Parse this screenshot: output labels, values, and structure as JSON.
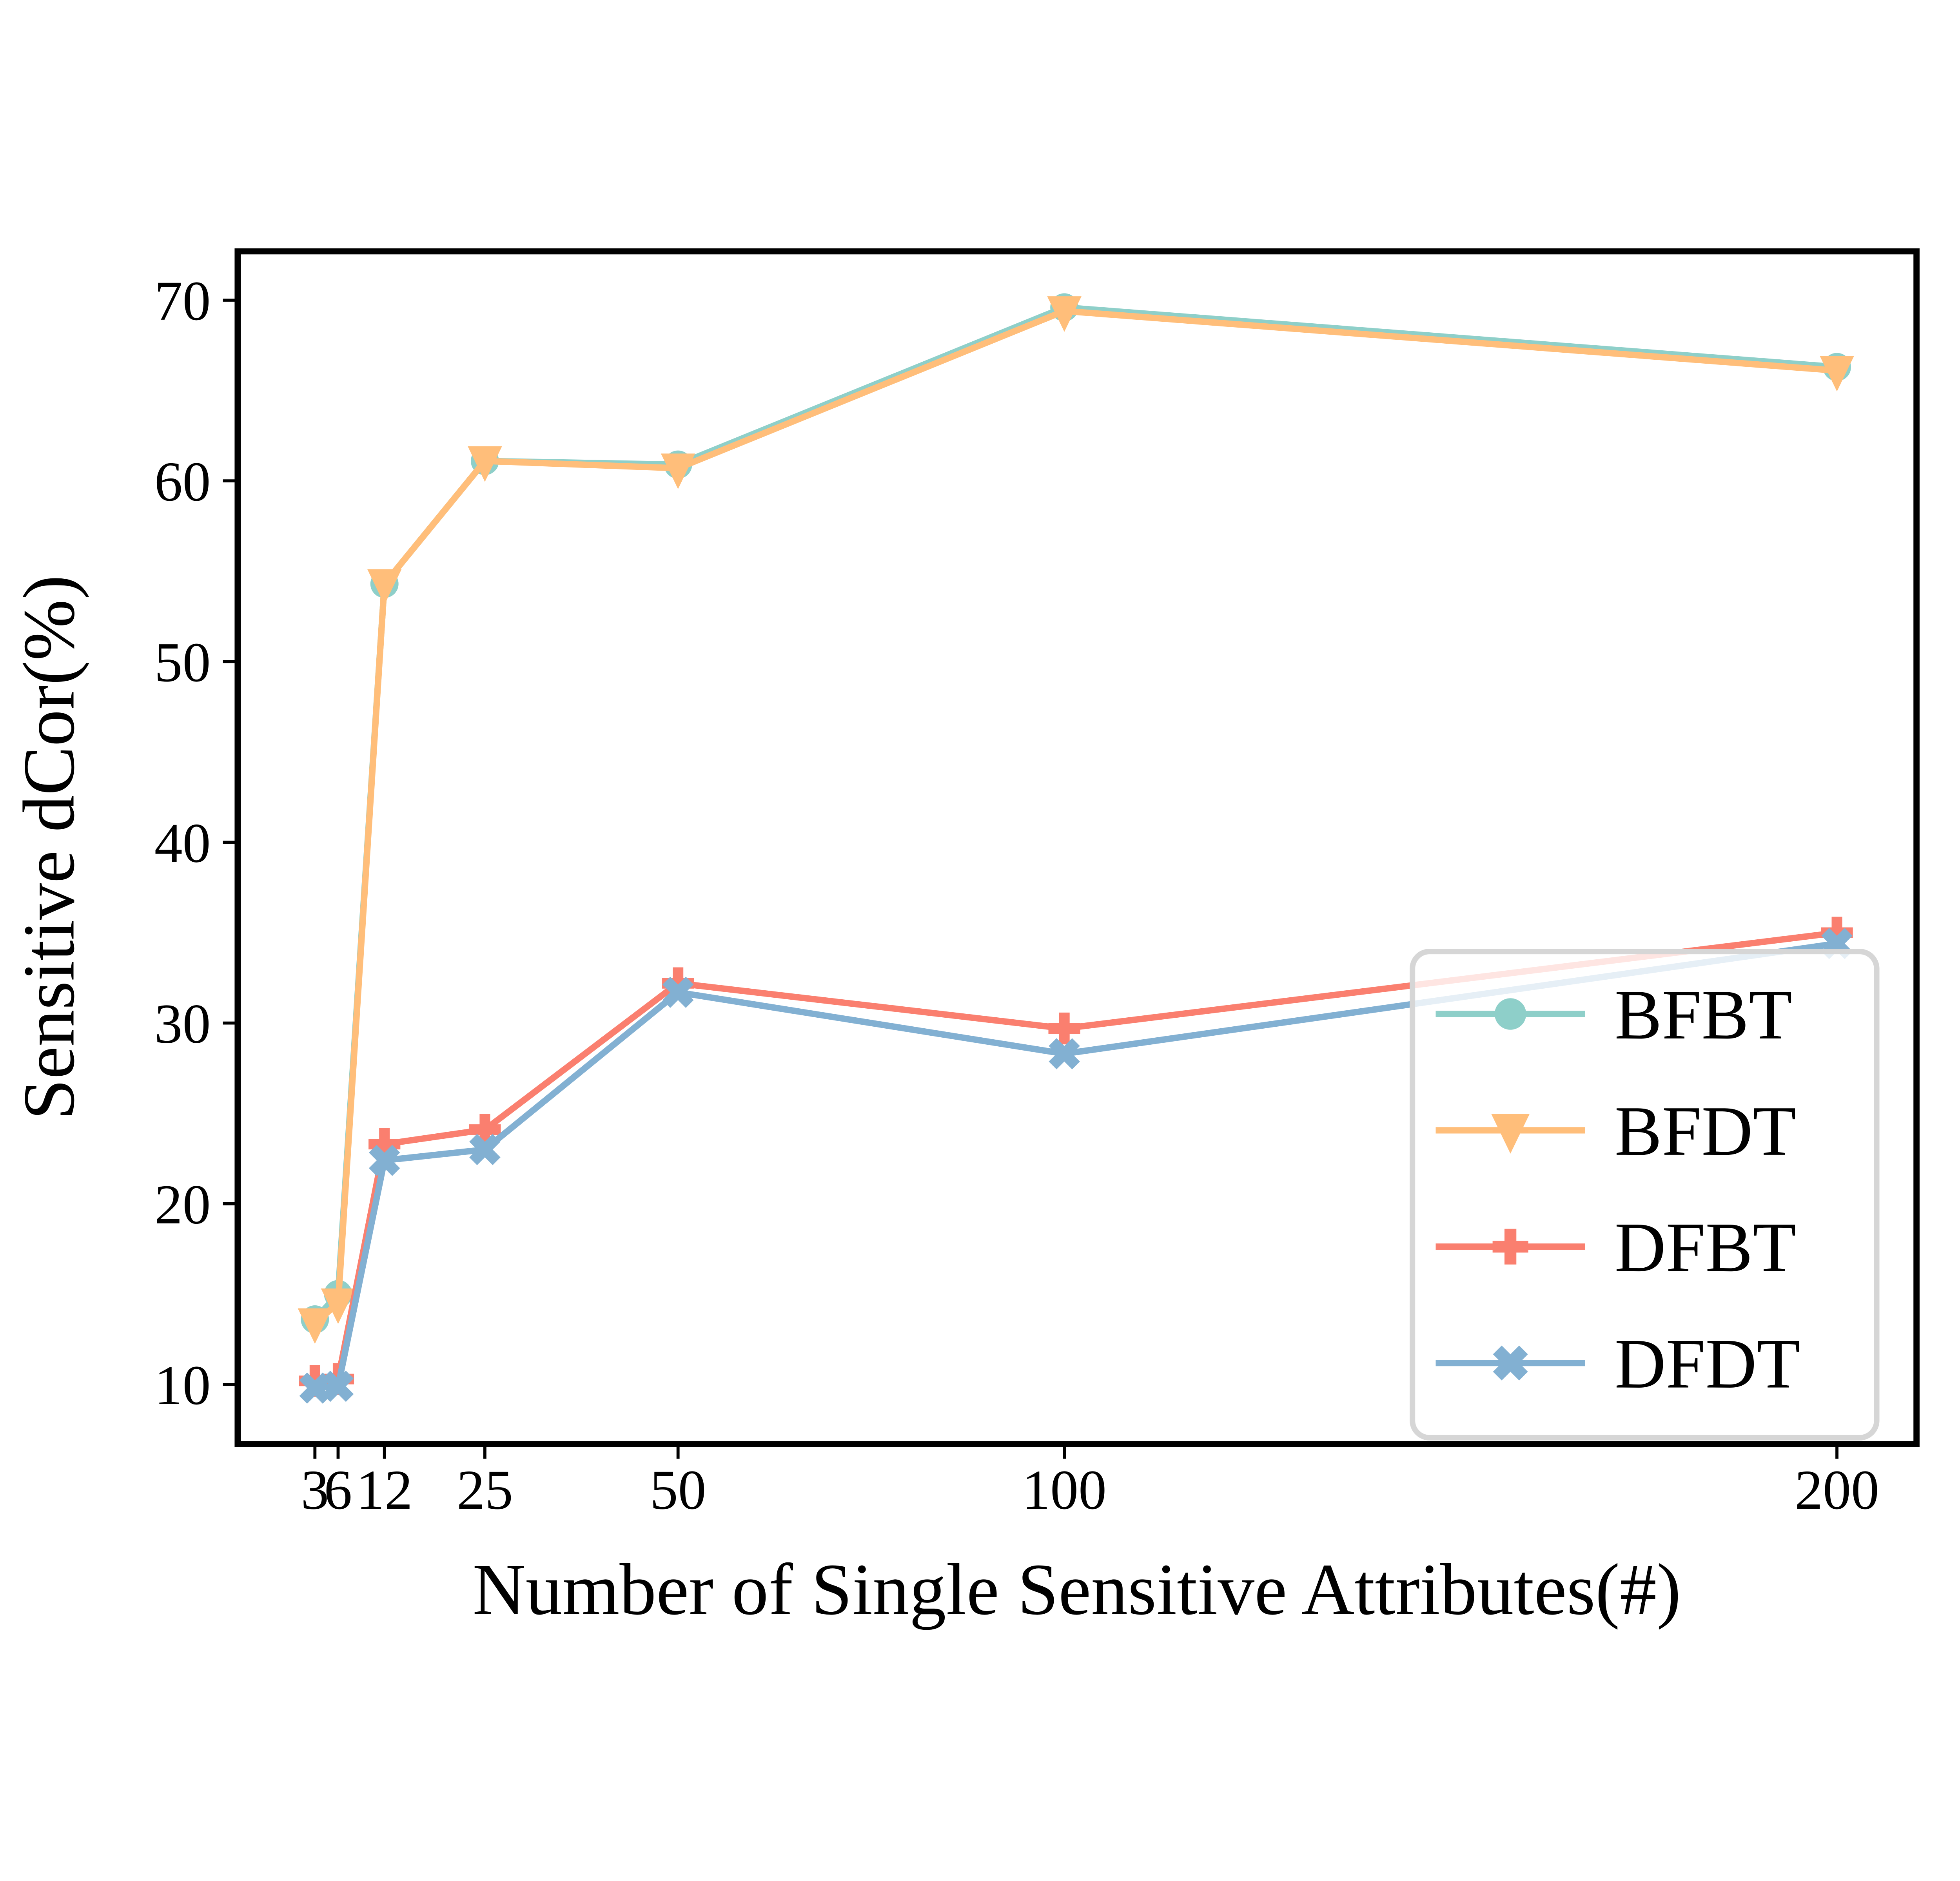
{
  "figure": {
    "background": "#ffffff",
    "spine_color": "#000000",
    "legend_border_color": "#d6d6d6"
  },
  "chart_data": {
    "type": "line",
    "title": "",
    "xlabel": "Number of Single Sensitive Attributes(#)",
    "ylabel": "Sensitive dCor(%)",
    "x": [
      3,
      6,
      12,
      25,
      50,
      100,
      200
    ],
    "x_tick_labels": [
      "3",
      "6",
      "12",
      "25",
      "50",
      "100",
      "200"
    ],
    "y_ticks": [
      10,
      20,
      30,
      40,
      50,
      60,
      70
    ],
    "y_tick_labels": [
      "10",
      "20",
      "30",
      "40",
      "50",
      "60",
      "70"
    ],
    "xlim": [
      -7,
      210.3
    ],
    "ylim": [
      6.7,
      72.7
    ],
    "grid": false,
    "legend_position": "lower-right-inside",
    "series": [
      {
        "name": "BFBT",
        "color": "#8ECFC9",
        "marker": "circle",
        "values": [
          13.6,
          15.0,
          54.3,
          61.1,
          60.9,
          69.6,
          66.3
        ]
      },
      {
        "name": "BFDT",
        "color": "#FFBE7A",
        "marker": "triangle-down",
        "values": [
          13.4,
          14.5,
          54.3,
          61.1,
          60.7,
          69.4,
          66.1
        ]
      },
      {
        "name": "DFBT",
        "color": "#FA7F6F",
        "marker": "plus",
        "values": [
          10.2,
          10.3,
          23.3,
          24.1,
          32.2,
          29.7,
          35.0
        ]
      },
      {
        "name": "DFDT",
        "color": "#82B0D2",
        "marker": "x",
        "values": [
          9.8,
          9.9,
          22.4,
          23.0,
          31.7,
          28.3,
          34.4
        ]
      }
    ]
  }
}
